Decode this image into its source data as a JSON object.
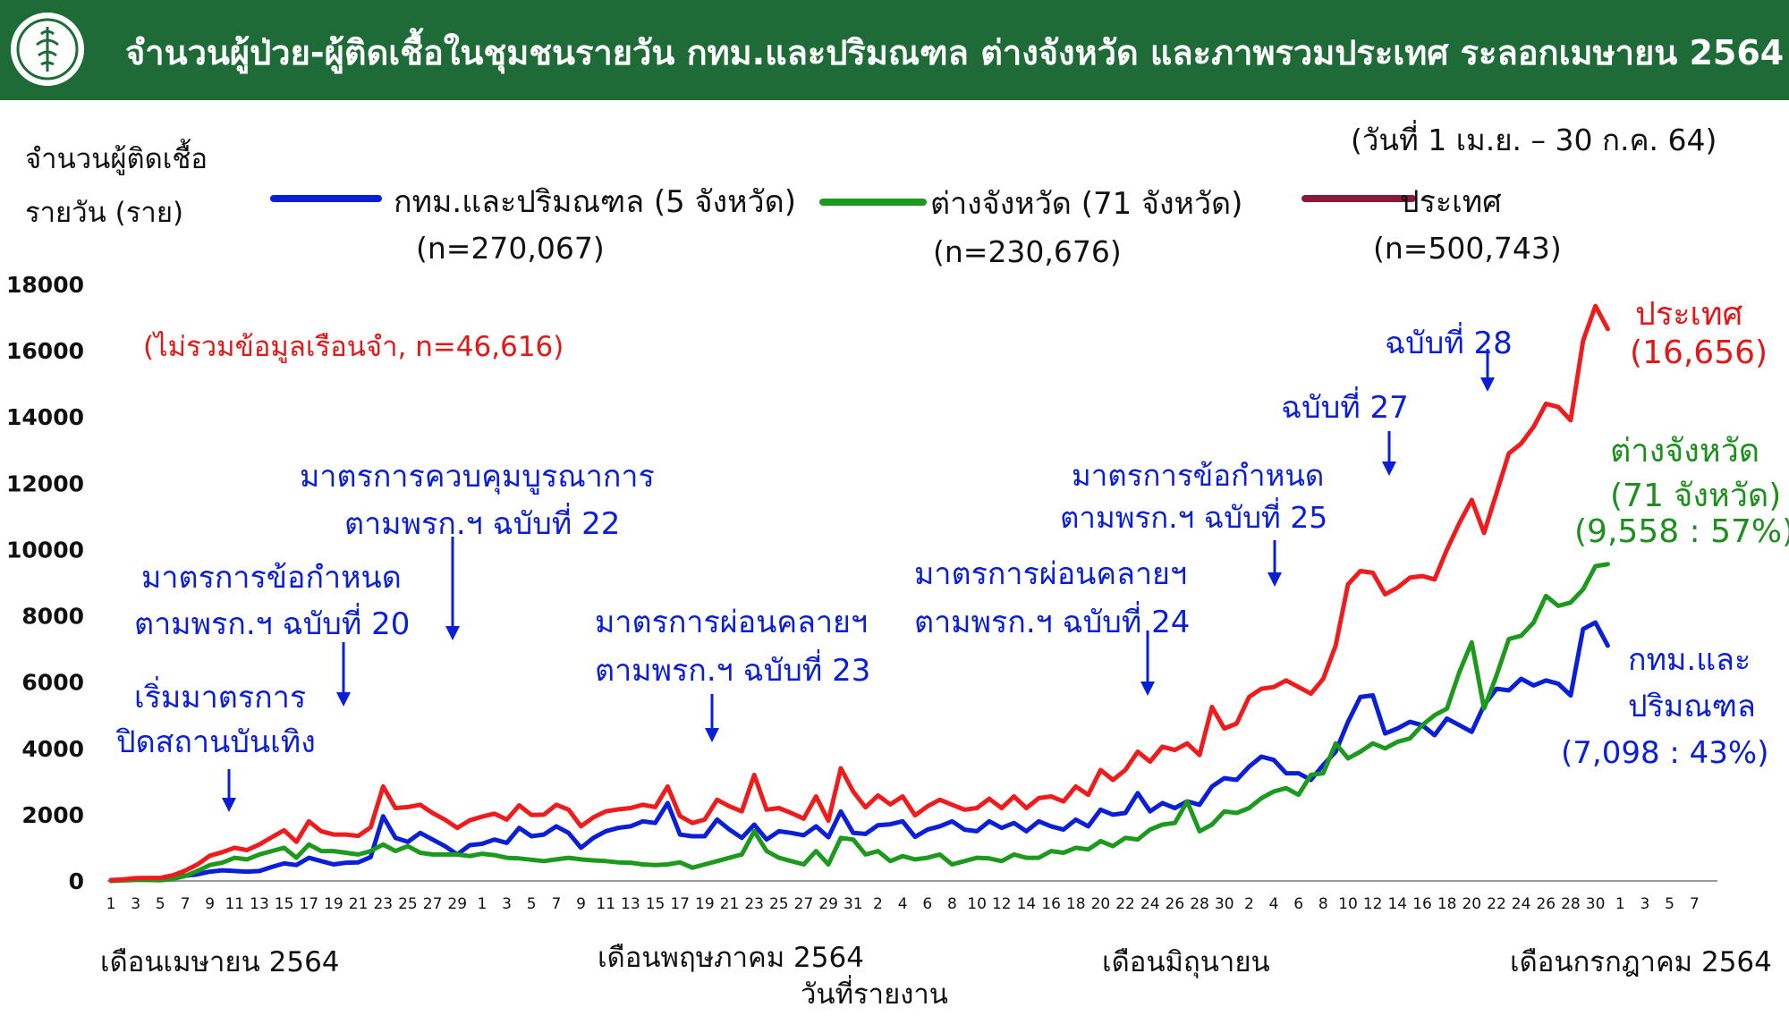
{
  "header": {
    "title": "จำนวนผู้ป่วย-ผู้ติดเชื้อในชุมชนรายวัน กทม.และปริมณฑล ต่างจังหวัด และภาพรวมประเทศ ระลอกเมษายน 2564",
    "bg_color": "#1e6b37"
  },
  "date_range": "(วันที่ 1 เม.ย. – 30 ก.ค. 64)",
  "y_title_line1": "จำนวนผู้ติดเชื้อ",
  "y_title_line2": "รายวัน (ราย)",
  "legend": [
    {
      "label": "กทม.และปริมณฑล (5 จังหวัด)",
      "n": "(n=270,067)",
      "color": "#0a1fd6"
    },
    {
      "label": "ต่างจังหวัด (71 จังหวัด)",
      "n": "(n=230,676)",
      "color": "#1d9a1d"
    },
    {
      "label": "ประเทศ",
      "n": "(n=500,743)",
      "color": "#8b1a3a"
    }
  ],
  "prison_note": "(ไม่รวมข้อมูลเรือนจำ, n=46,616)",
  "annotations": {
    "a1_l1": "เริ่มมาตรการ",
    "a1_l2": "ปิดสถานบันเทิง",
    "a2_l1": "มาตรการข้อกำหนด",
    "a2_l2": "ตามพรก.ฯ ฉบับที่ 20",
    "a3_l1": "มาตรการควบคุมบูรณาการ",
    "a3_l2": "ตามพรก.ฯ ฉบับที่ 22",
    "a4_l1": "มาตรการผ่อนคลายฯ",
    "a4_l2": "ตามพรก.ฯ ฉบับที่ 23",
    "a5_l1": "มาตรการผ่อนคลายฯ",
    "a5_l2": "ตามพรก.ฯ ฉบับที่ 24",
    "a6_l1": "มาตรการข้อกำหนด",
    "a6_l2": "ตามพรก.ฯ ฉบับที่ 25",
    "a7": "ฉบับที่ 27",
    "a8": "ฉบับที่ 28"
  },
  "end_labels": {
    "country_l1": "ประเทศ",
    "country_l2": "(16,656)",
    "prov_l1": "ต่างจังหวัด",
    "prov_l2": "(71 จังหวัด)",
    "prov_l3": "(9,558 : 57%)",
    "bkk_l1": "กทม.และ",
    "bkk_l2": "ปริมณฑล",
    "bkk_l3": "(7,098 : 43%)"
  },
  "months": {
    "apr": "เดือนเมษายน 2564",
    "may": "เดือนพฤษภาคม 2564",
    "jun": "เดือนมิถุนายน",
    "jul": "เดือนกรกฎาคม 2564"
  },
  "xlabel": "วันที่รายงาน",
  "chart_data": {
    "type": "line",
    "ylim": [
      0,
      18000
    ],
    "yticks": [
      0,
      2000,
      4000,
      6000,
      8000,
      10000,
      12000,
      14000,
      16000,
      18000
    ],
    "x_tick_labels": [
      "1",
      "3",
      "5",
      "7",
      "9",
      "11",
      "13",
      "15",
      "17",
      "19",
      "21",
      "23",
      "25",
      "27",
      "29",
      "1",
      "3",
      "5",
      "7",
      "9",
      "11",
      "13",
      "15",
      "17",
      "19",
      "21",
      "23",
      "25",
      "27",
      "29",
      "31",
      "2",
      "4",
      "6",
      "8",
      "10",
      "12",
      "14",
      "16",
      "18",
      "20",
      "22",
      "24",
      "26",
      "28",
      "30",
      "2",
      "4",
      "6",
      "8",
      "10",
      "12",
      "14",
      "16",
      "18",
      "20",
      "22",
      "24",
      "26",
      "28",
      "30",
      "1",
      "3",
      "5",
      "7"
    ],
    "series": [
      {
        "key": "bkk",
        "color": "#0a1fd6",
        "values": [
          26,
          33,
          54,
          62,
          73,
          110,
          160,
          200,
          280,
          320,
          300,
          280,
          300,
          420,
          530,
          480,
          700,
          600,
          500,
          550,
          560,
          720,
          1950,
          1300,
          1180,
          1450,
          1250,
          1050,
          800,
          1080,
          1120,
          1250,
          1150,
          1600,
          1350,
          1400,
          1650,
          1450,
          1000,
          1300,
          1500,
          1600,
          1650,
          1800,
          1750,
          2350,
          1400,
          1350,
          1350,
          1850,
          1550,
          1300,
          1700,
          1250,
          1500,
          1450,
          1380,
          1650,
          1320,
          2100,
          1450,
          1420,
          1680,
          1710,
          1800,
          1330,
          1550,
          1650,
          1800,
          1550,
          1500,
          1800,
          1600,
          1750,
          1500,
          1800,
          1650,
          1550,
          1850,
          1650,
          2150,
          2000,
          2050,
          2650,
          2100,
          2350,
          2200,
          2400,
          2300,
          2850,
          3100,
          3050,
          3450,
          3750,
          3650,
          3250,
          3250,
          3050,
          3500,
          3900,
          4800,
          5550,
          5600,
          4450,
          4600,
          4800,
          4700,
          4400,
          4900,
          4700,
          4500,
          5300,
          5800,
          5750,
          6100,
          5900,
          6050,
          5950,
          5600,
          7600,
          7800,
          7100
        ]
      },
      {
        "key": "prov",
        "color": "#1d9a1d",
        "values": [
          0,
          15,
          30,
          30,
          20,
          60,
          150,
          300,
          480,
          550,
          700,
          650,
          800,
          900,
          1000,
          700,
          1100,
          900,
          900,
          850,
          800,
          900,
          1100,
          900,
          1050,
          850,
          800,
          800,
          800,
          750,
          820,
          780,
          700,
          680,
          640,
          600,
          650,
          700,
          650,
          620,
          600,
          560,
          550,
          500,
          480,
          500,
          560,
          400,
          500,
          600,
          700,
          800,
          1500,
          900,
          700,
          600,
          500,
          900,
          500,
          1300,
          1250,
          800,
          900,
          600,
          750,
          650,
          700,
          800,
          500,
          600,
          700,
          680,
          600,
          800,
          700,
          700,
          900,
          850,
          1000,
          950,
          1200,
          1050,
          1300,
          1250,
          1550,
          1700,
          1750,
          2400,
          1500,
          1700,
          2100,
          2050,
          2200,
          2500,
          2700,
          2800,
          2600,
          3200,
          3250,
          4150,
          3700,
          3900,
          4150,
          4000,
          4200,
          4300,
          4700,
          5000,
          5200,
          6300,
          7200,
          5200,
          6200,
          7300,
          7400,
          7800,
          8600,
          8300,
          8400,
          8800,
          9500,
          9558
        ]
      },
      {
        "key": "country",
        "color": "#ee1c1c",
        "values": [
          26,
          48,
          84,
          92,
          93,
          170,
          310,
          500,
          760,
          870,
          1000,
          930,
          1100,
          1320,
          1530,
          1180,
          1800,
          1500,
          1400,
          1400,
          1360,
          1620,
          2850,
          2200,
          2230,
          2300,
          2050,
          1850,
          1600,
          1830,
          1940,
          2030,
          1850,
          2280,
          1990,
          2000,
          2300,
          2150,
          1650,
          1920,
          2100,
          2160,
          2200,
          2300,
          2230,
          2850,
          1960,
          1750,
          1850,
          2450,
          2250,
          2100,
          3200,
          2150,
          2200,
          2050,
          1880,
          2550,
          1820,
          3400,
          2700,
          2220,
          2580,
          2310,
          2550,
          1980,
          2250,
          2450,
          2300,
          2150,
          2200,
          2480,
          2200,
          2550,
          2200,
          2500,
          2550,
          2400,
          2850,
          2600,
          3350,
          3050,
          3350,
          3900,
          3600,
          4050,
          3950,
          4150,
          3800,
          5250,
          4600,
          4750,
          5550,
          5800,
          5850,
          6050,
          5850,
          5650,
          6100,
          7100,
          8950,
          9350,
          9300,
          8650,
          8850,
          9150,
          9200,
          9100,
          10000,
          10800,
          11500,
          10500,
          11700,
          12900,
          13200,
          13700,
          14400,
          14300,
          13900,
          16300,
          17350,
          16656
        ]
      }
    ]
  }
}
